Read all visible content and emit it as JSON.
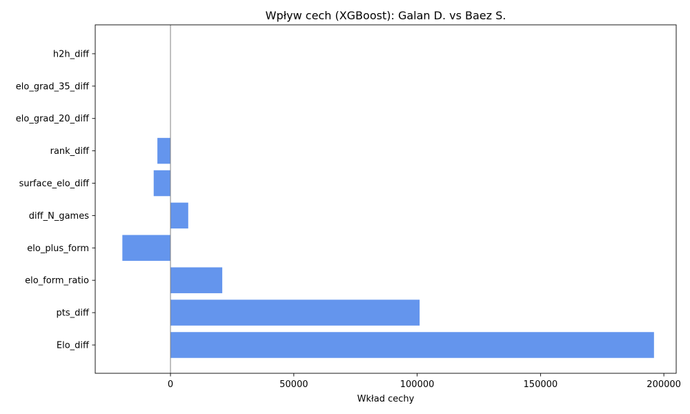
{
  "chart_data": {
    "type": "bar",
    "orientation": "horizontal",
    "title": "Wpływ cech (XGBoost): Galan D. vs Baez S.",
    "xlabel": "Wkład cechy",
    "ylabel": "",
    "categories": [
      "Elo_diff",
      "pts_diff",
      "elo_form_ratio",
      "elo_plus_form",
      "diff_N_games",
      "surface_elo_diff",
      "rank_diff",
      "elo_grad_20_diff",
      "elo_grad_35_diff",
      "h2h_diff"
    ],
    "values": [
      196000,
      101000,
      21000,
      -19500,
      7200,
      -6800,
      -5300,
      0,
      0,
      0
    ],
    "xlim": [
      -30500,
      205000
    ],
    "xticks": [
      0,
      50000,
      100000,
      150000,
      200000
    ],
    "xtick_labels": [
      "0",
      "50000",
      "100000",
      "150000",
      "200000"
    ],
    "grid": false,
    "zero_line": true,
    "bar_color": "#6495ED",
    "zero_line_color": "#808080"
  }
}
